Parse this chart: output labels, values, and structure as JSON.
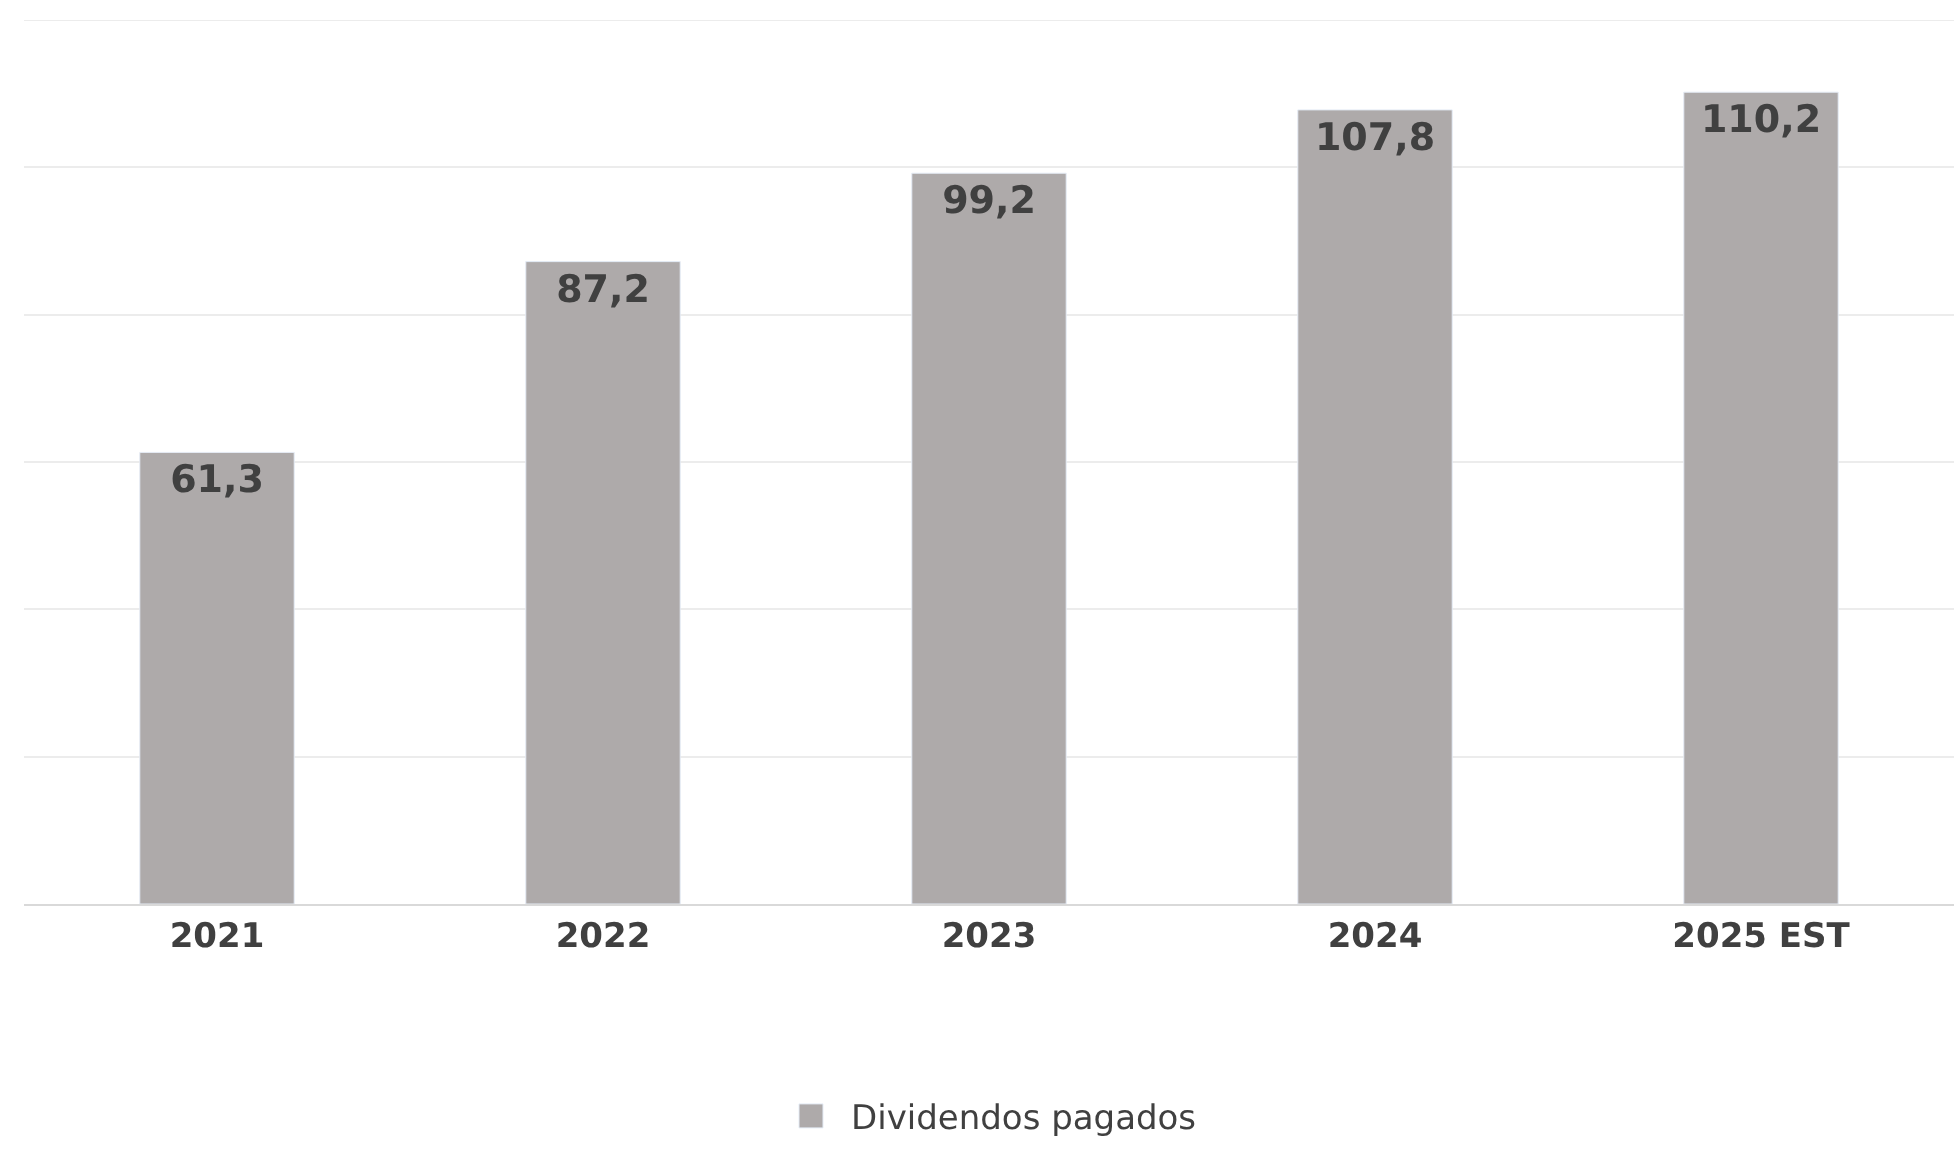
{
  "chart_data": {
    "type": "bar",
    "categories": [
      "2021",
      "2022",
      "2023",
      "2024",
      "2025 EST"
    ],
    "series": [
      {
        "name": "Dividendos pagados",
        "color": "#aeaaaa",
        "values": [
          61.3,
          87.2,
          99.2,
          107.8,
          110.2
        ],
        "value_labels": [
          "61,3",
          "87,2",
          "99,2",
          "107,8",
          "110,2"
        ]
      }
    ],
    "ylim": [
      0,
      120
    ],
    "yticks": [
      {
        "value": 0,
        "label": null
      },
      {
        "value": 20,
        "label": null
      },
      {
        "value": 40,
        "label": null
      },
      {
        "value": 60,
        "label": null
      },
      {
        "value": 80,
        "label": null
      },
      {
        "value": 100,
        "label": null
      },
      {
        "value": 120,
        "label": null
      }
    ],
    "grid": "y",
    "legend": "bottom",
    "tick_labels": "x"
  }
}
